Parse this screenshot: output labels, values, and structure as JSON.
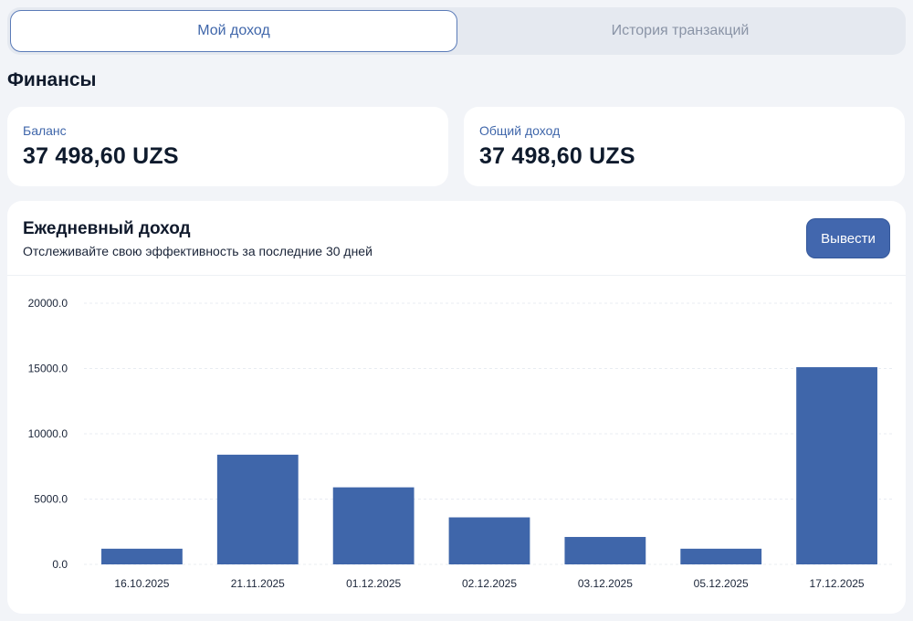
{
  "tabs": [
    {
      "label": "Мой доход",
      "active": true
    },
    {
      "label": "История транзакций",
      "active": false
    }
  ],
  "page_title": "Финансы",
  "stats": {
    "balance": {
      "label": "Баланс",
      "value": "37 498,60 UZS"
    },
    "total_income": {
      "label": "Общий доход",
      "value": "37 498,60 UZS"
    }
  },
  "chart_card": {
    "title": "Ежедневный доход",
    "subtitle": "Отслеживайте свою эффективность за последние 30 дней",
    "withdraw_label": "Вывести"
  },
  "colors": {
    "accent": "#4267ae",
    "bar": "#3f66aa",
    "background": "#f2f4f8"
  },
  "chart_data": {
    "type": "bar",
    "categories": [
      "16.10.2025",
      "21.11.2025",
      "01.12.2025",
      "02.12.2025",
      "03.12.2025",
      "05.12.2025",
      "17.12.2025"
    ],
    "values": [
      1200,
      8400,
      5900,
      3600,
      2100,
      1200,
      15100
    ],
    "title": "Ежедневный доход",
    "xlabel": "",
    "ylabel": "",
    "ylim": [
      0,
      20000
    ],
    "yticks": [
      "0.0",
      "5000.0",
      "10000.0",
      "15000.0",
      "20000.0"
    ],
    "grid": true,
    "legend": "none"
  }
}
